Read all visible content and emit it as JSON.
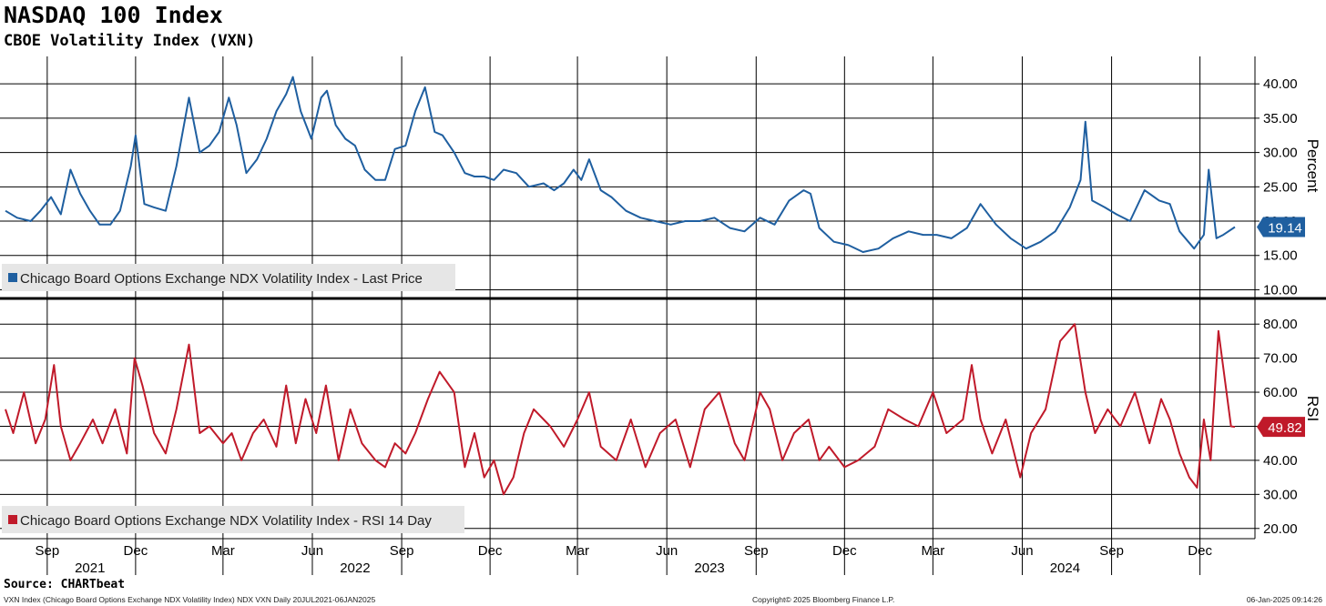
{
  "title": "NASDAQ 100 Index",
  "subtitle": "CBOE Volatility Index (VXN)",
  "footer": {
    "source": "Source: CHARTbeat",
    "description": "VXN Index (Chicago Board Options Exchange NDX Volatility Index) NDX VXN  Daily 20JUL2021-06JAN2025",
    "copyright": "Copyright© 2025 Bloomberg Finance L.P.",
    "timestamp": "06-Jan-2025 09:14:26"
  },
  "colors": {
    "price": "#1f5fa0",
    "rsi": "#c01a2a",
    "grid": "#000000"
  },
  "chart_data": [
    {
      "type": "line",
      "panel": "upper",
      "ylabel": "Percent",
      "ylim": [
        9,
        44
      ],
      "yticks": [
        10,
        15,
        20,
        25,
        30,
        35,
        40
      ],
      "ytick_labels": [
        "10.00",
        "15.00",
        "20.00",
        "25.00",
        "30.00",
        "35.00",
        "40.00"
      ],
      "grid": true,
      "legend_position": "bottom-left",
      "last_value": 19.14,
      "last_value_label": "19.14",
      "series": [
        {
          "name": "Chicago Board Options Exchange NDX Volatility Index - Last Price",
          "x": [
            "2021-07-20",
            "2021-08-01",
            "2021-08-15",
            "2021-08-25",
            "2021-09-05",
            "2021-09-15",
            "2021-09-25",
            "2021-10-05",
            "2021-10-15",
            "2021-10-25",
            "2021-11-05",
            "2021-11-15",
            "2021-11-26",
            "2021-12-01",
            "2021-12-10",
            "2021-12-20",
            "2022-01-01",
            "2022-01-12",
            "2022-01-25",
            "2022-02-05",
            "2022-02-15",
            "2022-02-25",
            "2022-03-07",
            "2022-03-15",
            "2022-03-25",
            "2022-04-05",
            "2022-04-15",
            "2022-04-25",
            "2022-05-05",
            "2022-05-12",
            "2022-05-20",
            "2022-05-31",
            "2022-06-10",
            "2022-06-16",
            "2022-06-25",
            "2022-07-05",
            "2022-07-15",
            "2022-07-25",
            "2022-08-05",
            "2022-08-15",
            "2022-08-25",
            "2022-09-05",
            "2022-09-15",
            "2022-09-25",
            "2022-10-05",
            "2022-10-13",
            "2022-10-25",
            "2022-11-05",
            "2022-11-15",
            "2022-11-25",
            "2022-12-05",
            "2022-12-15",
            "2022-12-28",
            "2023-01-10",
            "2023-01-25",
            "2023-02-05",
            "2023-02-15",
            "2023-02-25",
            "2023-03-05",
            "2023-03-13",
            "2023-03-25",
            "2023-04-05",
            "2023-04-20",
            "2023-05-05",
            "2023-05-20",
            "2023-06-05",
            "2023-06-20",
            "2023-07-05",
            "2023-07-20",
            "2023-08-05",
            "2023-08-20",
            "2023-09-05",
            "2023-09-20",
            "2023-10-05",
            "2023-10-20",
            "2023-10-27",
            "2023-11-05",
            "2023-11-20",
            "2023-12-05",
            "2023-12-20",
            "2024-01-05",
            "2024-01-20",
            "2024-02-05",
            "2024-02-20",
            "2024-03-05",
            "2024-03-20",
            "2024-04-05",
            "2024-04-19",
            "2024-05-05",
            "2024-05-20",
            "2024-06-05",
            "2024-06-20",
            "2024-07-05",
            "2024-07-20",
            "2024-07-31",
            "2024-08-05",
            "2024-08-12",
            "2024-08-25",
            "2024-09-06",
            "2024-09-20",
            "2024-10-05",
            "2024-10-20",
            "2024-10-31",
            "2024-11-10",
            "2024-11-25",
            "2024-12-05",
            "2024-12-10",
            "2024-12-18",
            "2024-12-25",
            "2025-01-06"
          ],
          "y": [
            21.5,
            20.5,
            20.0,
            21.5,
            23.5,
            21.0,
            27.5,
            24.0,
            21.5,
            19.5,
            19.5,
            21.5,
            28.0,
            32.5,
            22.5,
            22.0,
            21.5,
            28.0,
            38.0,
            30.0,
            31.0,
            33.0,
            38.0,
            34.0,
            27.0,
            29.0,
            32.0,
            36.0,
            38.5,
            41.0,
            36.0,
            32.0,
            38.0,
            39.0,
            34.0,
            32.0,
            31.0,
            27.5,
            26.0,
            26.0,
            30.5,
            31.0,
            36.0,
            39.5,
            33.0,
            32.5,
            30.0,
            27.0,
            26.5,
            26.5,
            26.0,
            27.5,
            27.0,
            25.0,
            25.5,
            24.5,
            25.5,
            27.5,
            26.0,
            29.0,
            24.5,
            23.5,
            21.5,
            20.5,
            20.0,
            19.5,
            20.0,
            20.0,
            20.5,
            19.0,
            18.5,
            20.5,
            19.5,
            23.0,
            24.5,
            24.0,
            19.0,
            17.0,
            16.5,
            15.5,
            16.0,
            17.5,
            18.5,
            18.0,
            18.0,
            17.5,
            19.0,
            22.5,
            19.5,
            17.5,
            16.0,
            17.0,
            18.5,
            22.0,
            26.0,
            34.5,
            23.0,
            22.0,
            21.0,
            20.0,
            24.5,
            23.0,
            22.5,
            18.5,
            16.0,
            18.0,
            27.5,
            17.5,
            18.0,
            19.14
          ]
        }
      ]
    },
    {
      "type": "line",
      "panel": "lower",
      "ylabel": "RSI",
      "ylim": [
        17,
        87
      ],
      "yticks": [
        20,
        30,
        40,
        50,
        60,
        70,
        80
      ],
      "ytick_labels": [
        "20.00",
        "30.00",
        "40.00",
        "50.00",
        "60.00",
        "70.00",
        "80.00"
      ],
      "grid": true,
      "legend_position": "bottom-left",
      "last_value": 49.82,
      "last_value_label": "49.82",
      "series": [
        {
          "name": "Chicago Board Options Exchange NDX Volatility Index - RSI 14 Day",
          "x": [
            "2021-07-20",
            "2021-07-28",
            "2021-08-08",
            "2021-08-20",
            "2021-08-30",
            "2021-09-08",
            "2021-09-15",
            "2021-09-25",
            "2021-10-05",
            "2021-10-18",
            "2021-10-28",
            "2021-11-10",
            "2021-11-22",
            "2021-11-30",
            "2021-12-08",
            "2021-12-20",
            "2022-01-01",
            "2022-01-12",
            "2022-01-25",
            "2022-02-05",
            "2022-02-15",
            "2022-03-01",
            "2022-03-10",
            "2022-03-20",
            "2022-04-01",
            "2022-04-12",
            "2022-04-25",
            "2022-05-05",
            "2022-05-15",
            "2022-05-25",
            "2022-06-05",
            "2022-06-15",
            "2022-06-28",
            "2022-07-10",
            "2022-07-22",
            "2022-08-05",
            "2022-08-15",
            "2022-08-25",
            "2022-09-05",
            "2022-09-15",
            "2022-09-28",
            "2022-10-10",
            "2022-10-25",
            "2022-11-05",
            "2022-11-15",
            "2022-11-25",
            "2022-12-05",
            "2022-12-15",
            "2022-12-25",
            "2023-01-05",
            "2023-01-15",
            "2023-02-01",
            "2023-02-15",
            "2023-03-01",
            "2023-03-13",
            "2023-03-25",
            "2023-04-10",
            "2023-04-25",
            "2023-05-10",
            "2023-05-25",
            "2023-06-10",
            "2023-06-25",
            "2023-07-10",
            "2023-07-25",
            "2023-08-10",
            "2023-08-20",
            "2023-09-05",
            "2023-09-15",
            "2023-09-28",
            "2023-10-10",
            "2023-10-25",
            "2023-11-05",
            "2023-11-15",
            "2023-12-01",
            "2023-12-15",
            "2024-01-01",
            "2024-01-15",
            "2024-02-01",
            "2024-02-15",
            "2024-03-01",
            "2024-03-15",
            "2024-04-01",
            "2024-04-10",
            "2024-04-19",
            "2024-05-01",
            "2024-05-15",
            "2024-05-30",
            "2024-06-10",
            "2024-06-25",
            "2024-07-10",
            "2024-07-25",
            "2024-08-05",
            "2024-08-15",
            "2024-08-28",
            "2024-09-10",
            "2024-09-25",
            "2024-10-10",
            "2024-10-22",
            "2024-10-31",
            "2024-11-10",
            "2024-11-20",
            "2024-11-28",
            "2024-12-05",
            "2024-12-12",
            "2024-12-20",
            "2025-01-02",
            "2025-01-06"
          ],
          "y": [
            55,
            48,
            60,
            45,
            52,
            68,
            50,
            40,
            45,
            52,
            45,
            55,
            42,
            70,
            62,
            48,
            42,
            55,
            74,
            48,
            50,
            45,
            48,
            40,
            48,
            52,
            44,
            62,
            45,
            58,
            48,
            62,
            40,
            55,
            45,
            40,
            38,
            45,
            42,
            48,
            58,
            66,
            60,
            38,
            48,
            35,
            40,
            30,
            35,
            48,
            55,
            50,
            44,
            52,
            60,
            44,
            40,
            52,
            38,
            48,
            52,
            38,
            55,
            60,
            45,
            40,
            60,
            55,
            40,
            48,
            52,
            40,
            44,
            38,
            40,
            44,
            55,
            52,
            50,
            60,
            48,
            52,
            68,
            52,
            42,
            52,
            35,
            48,
            55,
            75,
            80,
            60,
            48,
            55,
            50,
            60,
            45,
            58,
            52,
            42,
            35,
            32,
            52,
            40,
            78,
            50,
            49.82
          ]
        }
      ]
    }
  ],
  "x_axis": {
    "month_labels": [
      "Sep",
      "Dec",
      "Mar",
      "Jun",
      "Sep",
      "Dec",
      "Mar",
      "Jun",
      "Sep",
      "Dec",
      "Mar",
      "Jun",
      "Sep",
      "Dec"
    ],
    "month_dates": [
      "2021-09-01",
      "2021-12-01",
      "2022-03-01",
      "2022-06-01",
      "2022-09-01",
      "2022-12-01",
      "2023-03-01",
      "2023-06-01",
      "2023-09-01",
      "2023-12-01",
      "2024-03-01",
      "2024-06-01",
      "2024-09-01",
      "2024-12-01"
    ],
    "year_labels": [
      "2021",
      "2022",
      "2023",
      "2024"
    ],
    "year_dates": [
      "2021-10-15",
      "2022-07-15",
      "2023-07-15",
      "2024-07-15"
    ],
    "range": [
      "2021-07-20",
      "2025-01-06"
    ]
  }
}
